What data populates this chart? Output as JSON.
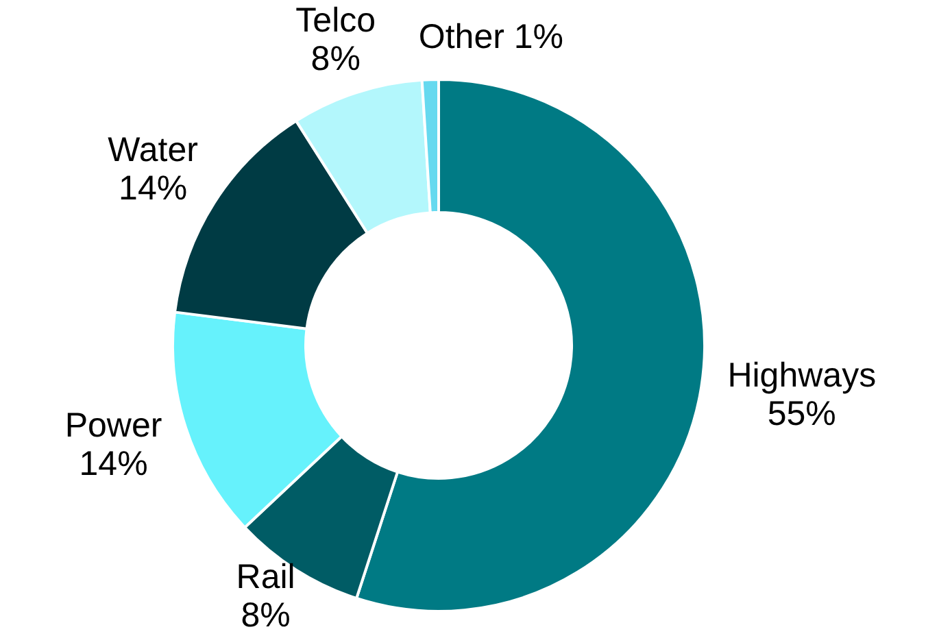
{
  "chart_data": {
    "type": "donut",
    "categories": [
      "Highways",
      "Rail",
      "Power",
      "Water",
      "Telco",
      "Other"
    ],
    "values": [
      55,
      8,
      14,
      14,
      8,
      1
    ],
    "colors": [
      "#007a84",
      "#005c65",
      "#66f2fc",
      "#003b44",
      "#b3f7fc",
      "#66d9ef"
    ],
    "value_labels": [
      "55%",
      "8%",
      "14%",
      "14%",
      "8%",
      "1%"
    ],
    "legend": false
  }
}
